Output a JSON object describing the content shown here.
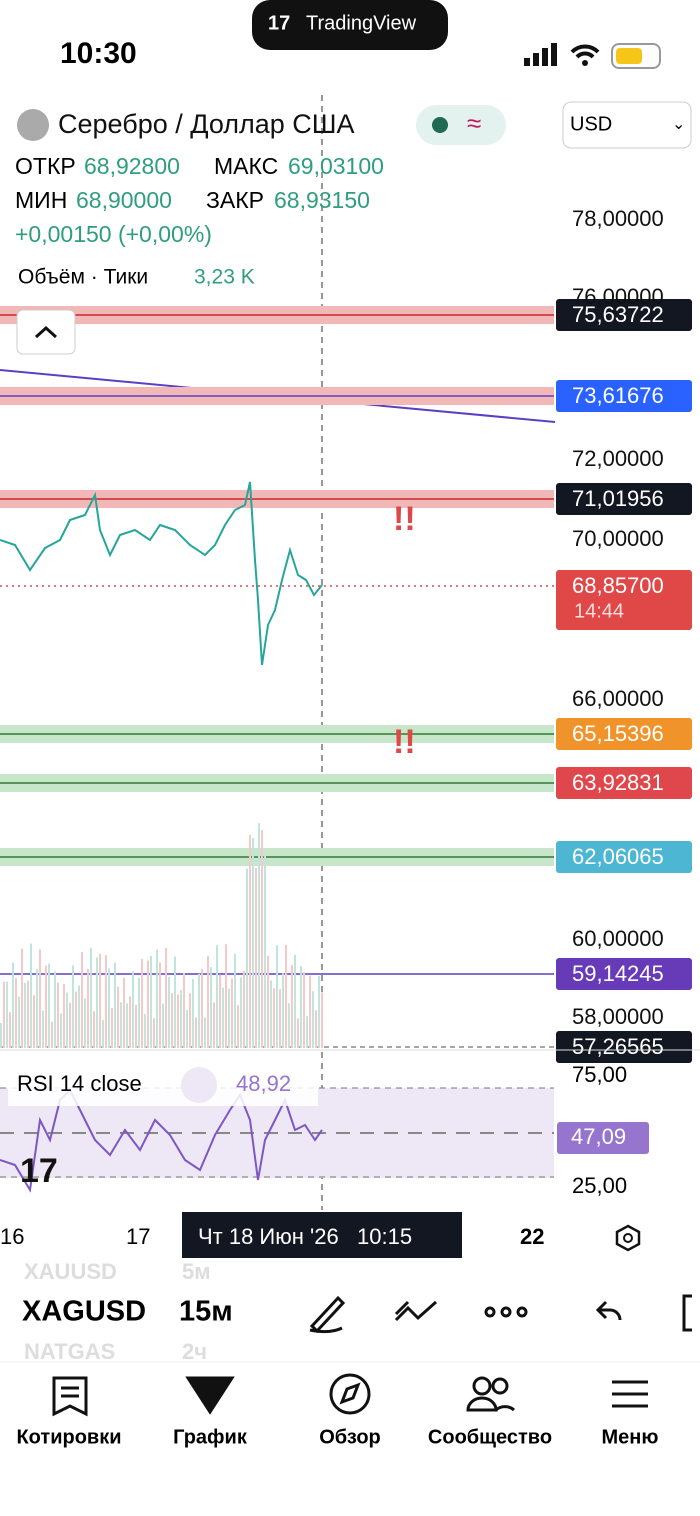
{
  "status": {
    "time": "10:30",
    "app": "TradingView"
  },
  "header": {
    "symbol_name": "Серебро / Доллар США",
    "currency": "USD",
    "open_label": "ОТКР",
    "open": "68,92800",
    "high_label": "МАКС",
    "high": "69,03100",
    "low_label": "МИН",
    "low": "68,90000",
    "close_label": "ЗАКР",
    "close": "68,93150",
    "change": "+0,00150 (+0,00%)",
    "volume_label": "Объём · Тики",
    "volume": "3,23 K"
  },
  "price_axis": [
    "78,00000",
    "76,00000",
    "72,00000",
    "70,00000",
    "66,00000",
    "60,00000",
    "58,00000"
  ],
  "levels": [
    "75,63722",
    "73,61676",
    "71,01956",
    "65,15396",
    "63,92831",
    "62,06065",
    "59,14245",
    "57,26565"
  ],
  "last_price": {
    "price": "68,85700",
    "countdown": "14:44"
  },
  "alerts": [
    "!!",
    "!!"
  ],
  "rsi": {
    "title": "RSI 14 close",
    "value": "48,92",
    "axis": [
      "75,00",
      "25,00"
    ],
    "label": "47,09"
  },
  "time_axis": {
    "ticks": [
      "16",
      "17",
      "22"
    ],
    "cursor": "Чт 18 Июн '26   10:15"
  },
  "toolbar": {
    "symbols": [
      "XAUUSD",
      "XAGUSD",
      "NATGAS"
    ],
    "intervals": [
      "5м",
      "15м",
      "2ч"
    ]
  },
  "nav": [
    "Котировки",
    "График",
    "Обзор",
    "Сообщество",
    "Меню"
  ]
}
